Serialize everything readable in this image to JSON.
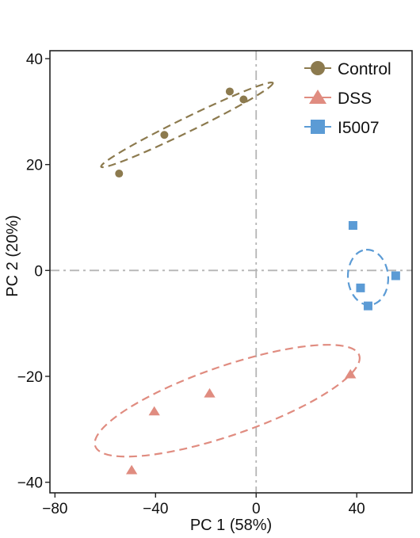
{
  "chart_data": {
    "type": "scatter",
    "xlabel": "PC 1 (58%)",
    "ylabel": "PC 2 (20%)",
    "xlim": [
      -82,
      62
    ],
    "ylim": [
      -42,
      41.5
    ],
    "x_ticks": [
      -80,
      -40,
      0,
      40
    ],
    "y_ticks": [
      -40,
      -20,
      0,
      20,
      40
    ],
    "x_tick_labels": [
      "−80",
      "−40",
      "0",
      "40"
    ],
    "y_tick_labels": [
      "−40",
      "−20",
      "0",
      "20",
      "40"
    ],
    "reference_lines": {
      "x": 0,
      "y": 0,
      "style": "dash-dot",
      "color": "#b5b5b5"
    },
    "grid": false,
    "legend_position": "top-right",
    "series": [
      {
        "name": "Control",
        "marker": "circle",
        "color": "#8c7a4e",
        "points": [
          [
            -54.5,
            18.3
          ],
          [
            -36.5,
            25.6
          ],
          [
            -10.5,
            33.8
          ],
          [
            -5,
            32.3
          ]
        ],
        "ellipse": {
          "center": [
            -27.5,
            27.5
          ],
          "semi_axes": [
            38,
            2.8
          ],
          "angle_deg": 26
        }
      },
      {
        "name": "DSS",
        "marker": "triangle",
        "color": "#e08c80",
        "points": [
          [
            -49.5,
            -37.7
          ],
          [
            -40.5,
            -26.6
          ],
          [
            -18.5,
            -23.2
          ],
          [
            37.5,
            -19.6
          ]
        ],
        "ellipse": {
          "center": [
            -11.5,
            -24.6
          ],
          "semi_axes": [
            55.5,
            13.7
          ],
          "angle_deg": 19
        }
      },
      {
        "name": "I5007",
        "marker": "square",
        "color": "#5b9bd5",
        "points": [
          [
            38.5,
            8.5
          ],
          [
            41.5,
            -3.3
          ],
          [
            44.5,
            -6.7
          ],
          [
            55.5,
            -1.0
          ]
        ],
        "ellipse": {
          "center": [
            44.5,
            -1.3
          ],
          "semi_axes": [
            11,
            8
          ],
          "angle_deg": 94
        }
      }
    ]
  }
}
